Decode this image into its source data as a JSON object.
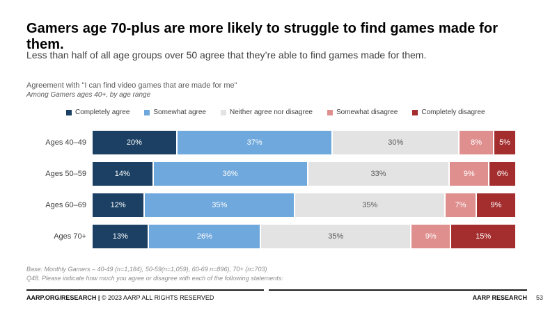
{
  "slide": {
    "title": "Gamers age 70-plus are more likely to struggle to find games made for them.",
    "subtitle": "Less than half of all age groups over 50 agree that they’re able to find games made for them.",
    "page_number": "53"
  },
  "chart": {
    "heading": "Agreement with \"I can find video games that are made for me\"",
    "subheading": "Among Gamers ages 40+, by age range"
  },
  "chart_data": {
    "type": "bar",
    "orientation": "horizontal",
    "stacked": true,
    "normalized_to_full_width": true,
    "value_suffix": "%",
    "categories": [
      "Ages 40–49",
      "Ages 50–59",
      "Ages 60–69",
      "Ages 70+"
    ],
    "series": [
      {
        "name": "Completely agree",
        "color": "#1b4063",
        "label_color": "#ffffff",
        "values": [
          20,
          14,
          12,
          13
        ]
      },
      {
        "name": "Somewhat agree",
        "color": "#6fa8dc",
        "label_color": "#ffffff",
        "values": [
          37,
          36,
          35,
          26
        ]
      },
      {
        "name": "Neither agree nor disagree",
        "color": "#e3e3e3",
        "label_color": "#595959",
        "values": [
          30,
          33,
          35,
          35
        ]
      },
      {
        "name": "Somewhat disagree",
        "color": "#e08f8f",
        "label_color": "#ffffff",
        "values": [
          8,
          9,
          7,
          9
        ]
      },
      {
        "name": "Completely disagree",
        "color": "#a42d2d",
        "label_color": "#ffffff",
        "values": [
          5,
          6,
          9,
          15
        ]
      }
    ],
    "legend_position": "top",
    "grid": false
  },
  "footnotes": [
    "Base: Monthly Gamers – 40-49 (n=1,184), 50-59(n=1,059), 60-69 n=896), 70+ (n=703)",
    "Q48. Please indicate how much you agree or disagree with each of the following statements:"
  ],
  "footer": {
    "brand": "AARP.ORG/RESEARCH |",
    "copyright": " © 2023 AARP ALL RIGHTS RESERVED",
    "right_label": "AARP RESEARCH"
  }
}
